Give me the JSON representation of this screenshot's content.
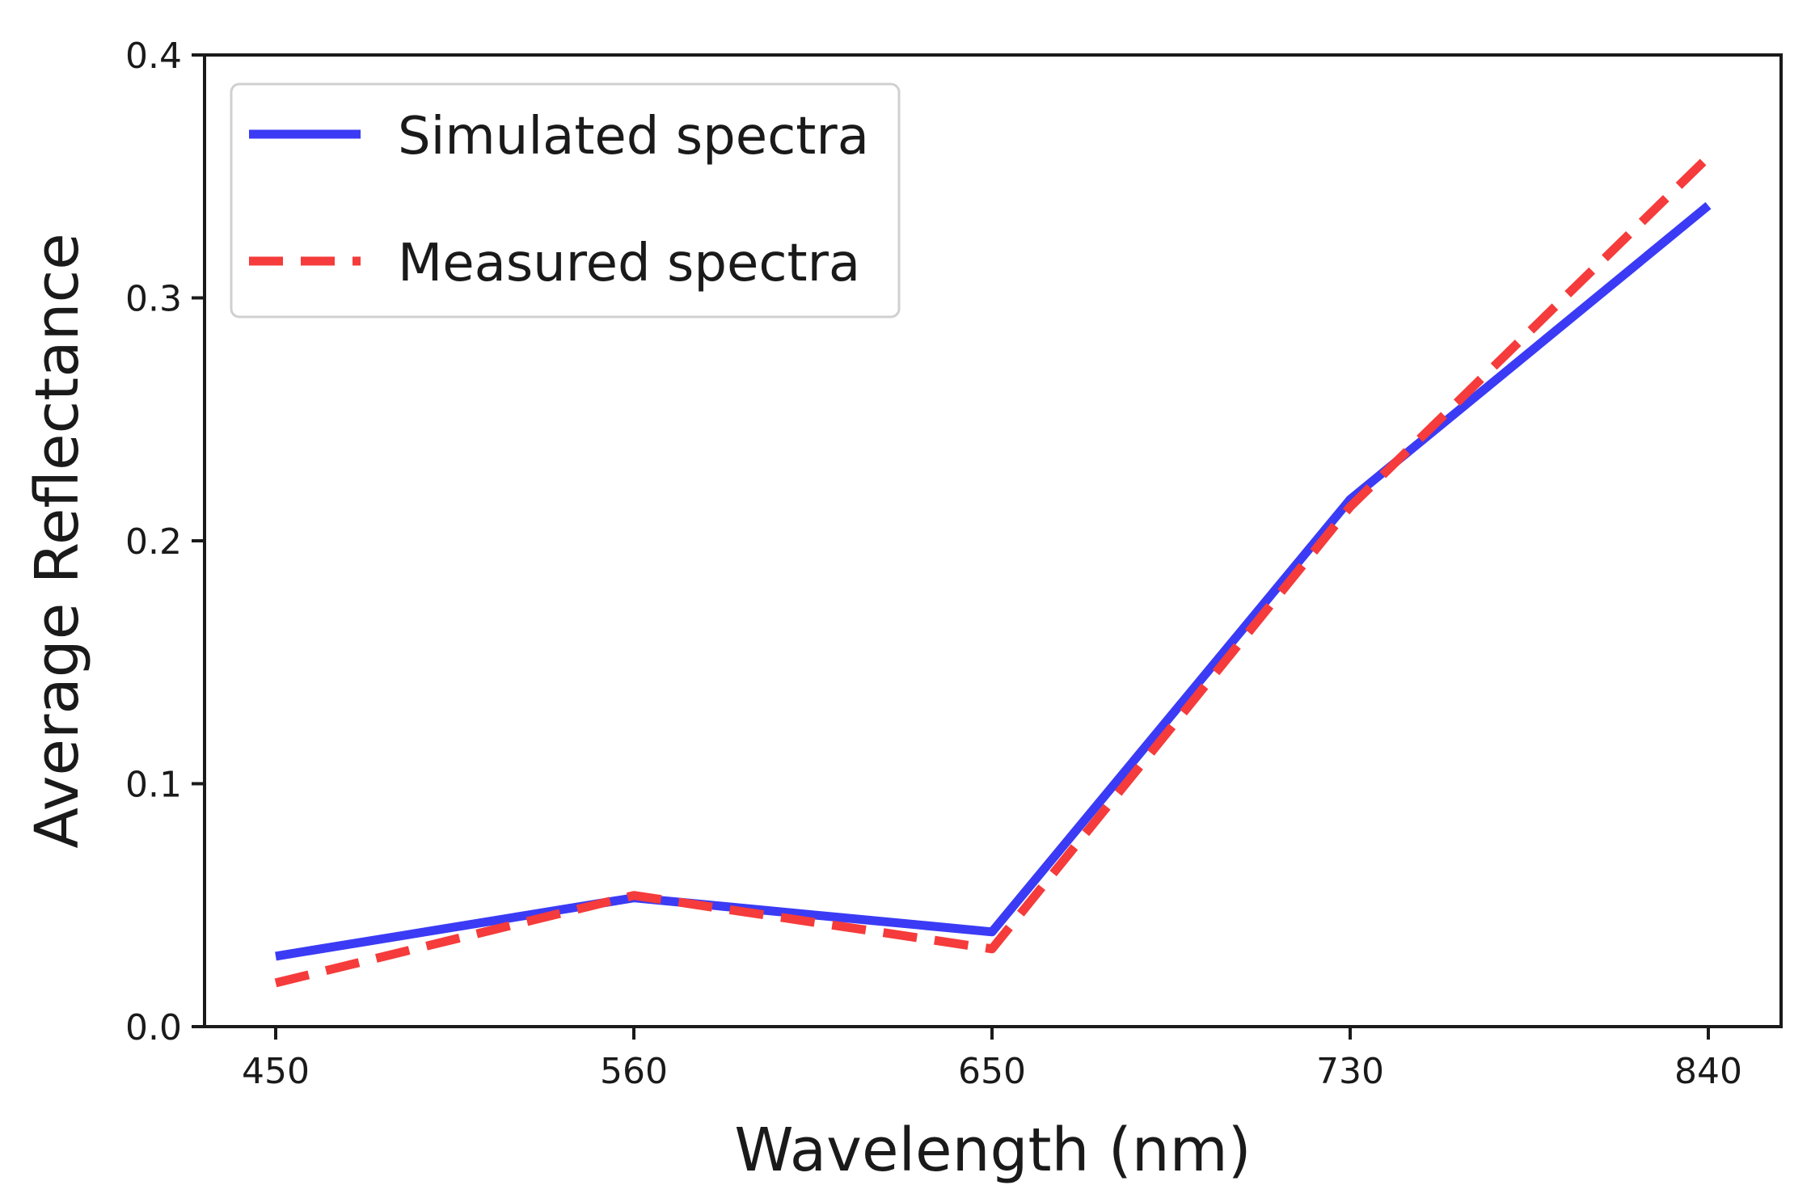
{
  "chart_data": {
    "type": "line",
    "title": "",
    "xlabel": "Wavelength (nm)",
    "ylabel": "Average Reflectance",
    "categories": [
      "450",
      "560",
      "650",
      "730",
      "840"
    ],
    "x": [
      450,
      560,
      650,
      730,
      840
    ],
    "ylim": [
      0.0,
      0.4
    ],
    "yticks": [
      0.0,
      0.1,
      0.2,
      0.3,
      0.4
    ],
    "ytick_labels": [
      "0.0",
      "0.1",
      "0.2",
      "0.3",
      "0.4"
    ],
    "grid": false,
    "legend_position": "top-left",
    "series": [
      {
        "name": "Simulated spectra",
        "style": "solid",
        "color": "#3b3bf5",
        "values": [
          0.029,
          0.053,
          0.039,
          0.217,
          0.338
        ]
      },
      {
        "name": "Measured spectra",
        "style": "dashed",
        "color": "#f53b3b",
        "values": [
          0.018,
          0.054,
          0.032,
          0.214,
          0.358
        ]
      }
    ]
  }
}
